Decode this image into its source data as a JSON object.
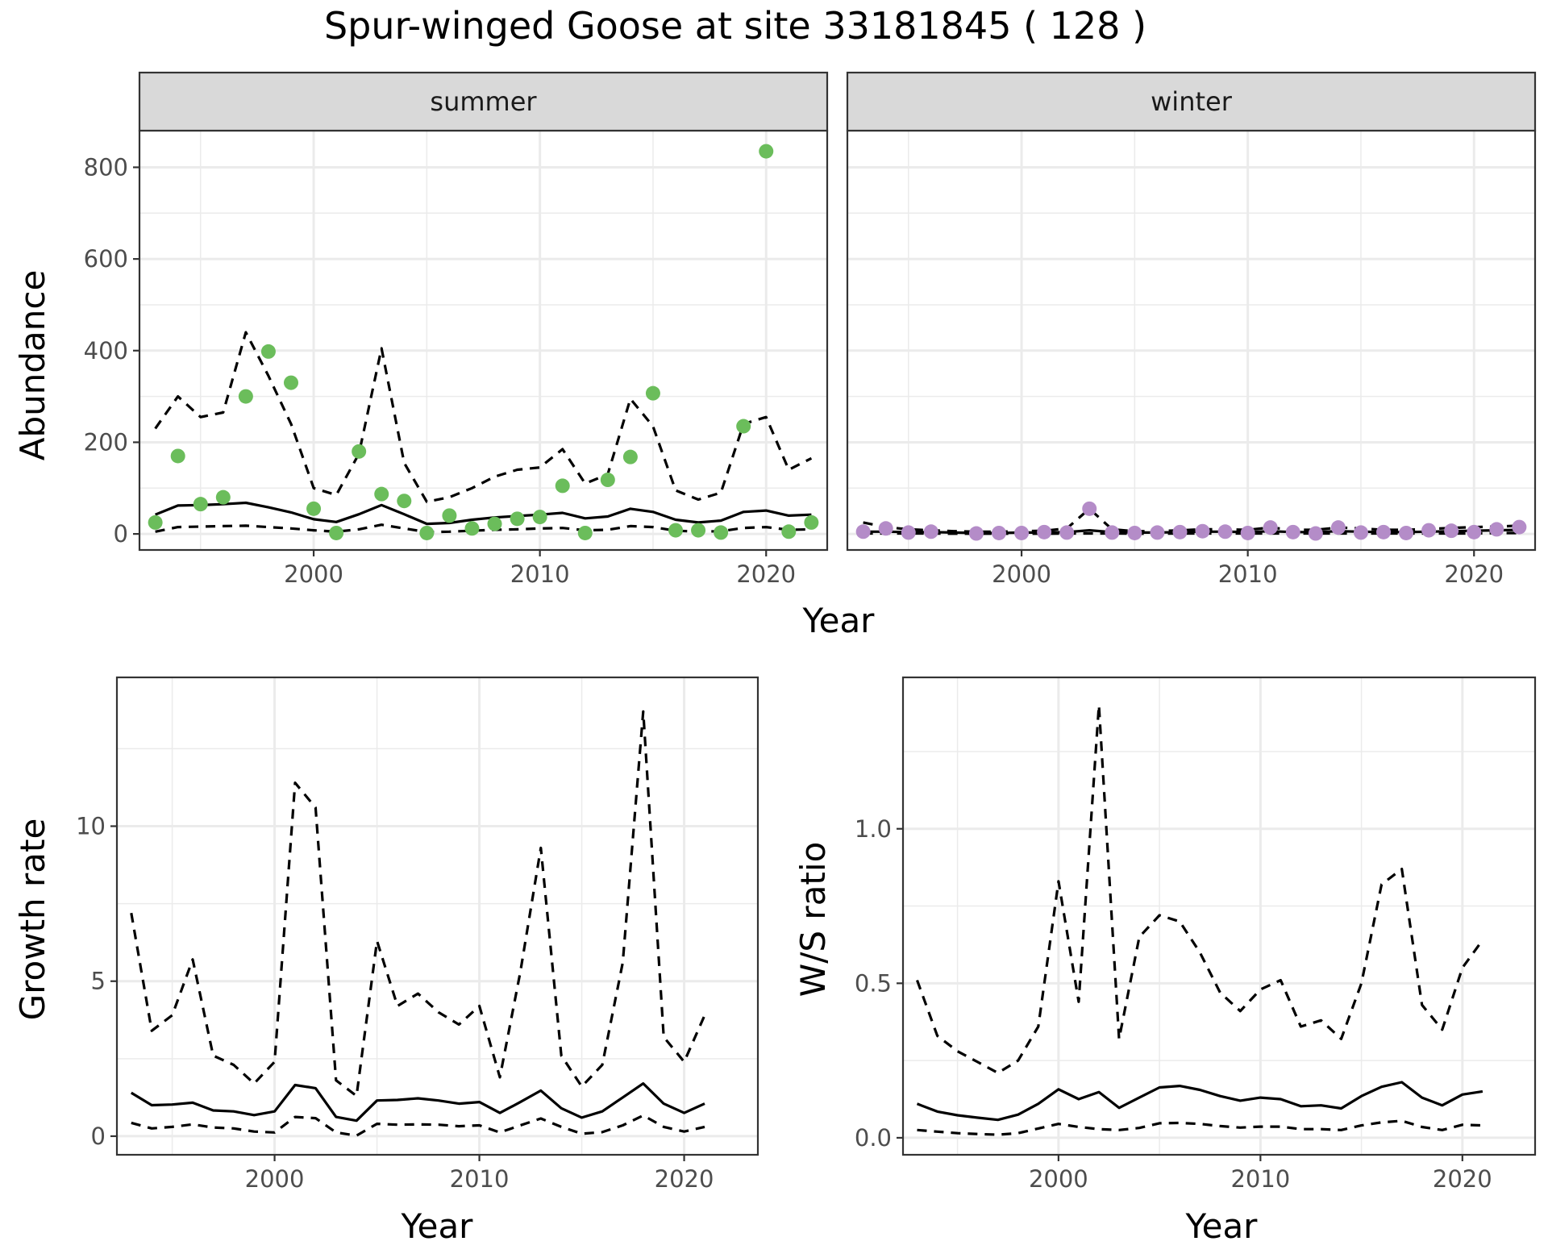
{
  "title": "Spur-winged Goose at site 33181845 ( 128 )",
  "colors": {
    "summer_points": "#6bbd5b",
    "winter_points": "#b48cc8",
    "lines": "#000000",
    "strip_bg": "#d9d9d9",
    "grid": "#ebebeb"
  },
  "chart_data": [
    {
      "type": "line",
      "panel": "summer",
      "strip_label": "summer",
      "xlabel": "Year",
      "ylabel": "Abundance",
      "xlim": [
        1992.3,
        2022.7
      ],
      "ylim": [
        -35,
        880
      ],
      "xticks": [
        2000,
        2010,
        2020
      ],
      "yticks": [
        0,
        200,
        400,
        600,
        800
      ],
      "grid": true,
      "observed_color": "#6bbd5b",
      "observed": {
        "x": [
          1993,
          1994,
          1995,
          1996,
          1997,
          1998,
          1999,
          2000,
          2001,
          2002,
          2003,
          2004,
          2005,
          2006,
          2007,
          2008,
          2009,
          2010,
          2011,
          2012,
          2013,
          2014,
          2015,
          2016,
          2017,
          2018,
          2019,
          2020,
          2021,
          2022
        ],
        "y": [
          25,
          170,
          65,
          80,
          300,
          398,
          330,
          55,
          2,
          180,
          87,
          72,
          2,
          40,
          12,
          22,
          33,
          37,
          105,
          2,
          118,
          168,
          307,
          8,
          8,
          3,
          235,
          835,
          5,
          25
        ]
      },
      "series": [
        {
          "linestyle": "solid",
          "x": [
            1993,
            1994,
            1995,
            1996,
            1997,
            1998,
            1999,
            2000,
            2001,
            2002,
            2003,
            2004,
            2005,
            2006,
            2007,
            2008,
            2009,
            2010,
            2011,
            2012,
            2013,
            2014,
            2015,
            2016,
            2017,
            2018,
            2019,
            2020,
            2021,
            2022
          ],
          "y": [
            42,
            62,
            63,
            65,
            68,
            58,
            47,
            32,
            26,
            43,
            63,
            43,
            22,
            24,
            31,
            36,
            39,
            42,
            46,
            34,
            38,
            55,
            48,
            31,
            25,
            29,
            48,
            51,
            40,
            42
          ]
        },
        {
          "linestyle": "dashed",
          "x": [
            1993,
            1994,
            1995,
            1996,
            1997,
            1998,
            1999,
            2000,
            2001,
            2002,
            2003,
            2004,
            2005,
            2006,
            2007,
            2008,
            2009,
            2010,
            2011,
            2012,
            2013,
            2014,
            2015,
            2016,
            2017,
            2018,
            2019,
            2020,
            2021,
            2022
          ],
          "y": [
            230,
            300,
            255,
            265,
            440,
            345,
            240,
            100,
            85,
            175,
            405,
            155,
            70,
            80,
            100,
            125,
            140,
            145,
            185,
            110,
            130,
            295,
            235,
            95,
            75,
            90,
            240,
            255,
            140,
            165
          ]
        },
        {
          "linestyle": "dashed",
          "x": [
            1993,
            1994,
            1995,
            1996,
            1997,
            1998,
            1999,
            2000,
            2001,
            2002,
            2003,
            2004,
            2005,
            2006,
            2007,
            2008,
            2009,
            2010,
            2011,
            2012,
            2013,
            2014,
            2015,
            2016,
            2017,
            2018,
            2019,
            2020,
            2021,
            2022
          ],
          "y": [
            5,
            15,
            16,
            17,
            18,
            15,
            12,
            8,
            5,
            10,
            20,
            12,
            4,
            5,
            7,
            9,
            10,
            12,
            13,
            8,
            9,
            17,
            15,
            7,
            5,
            6,
            13,
            15,
            9,
            10
          ]
        }
      ]
    },
    {
      "type": "line",
      "panel": "winter",
      "strip_label": "winter",
      "xlabel": "Year",
      "ylabel": "Abundance",
      "xlim": [
        1992.3,
        2022.7
      ],
      "ylim": [
        -35,
        880
      ],
      "xticks": [
        2000,
        2010,
        2020
      ],
      "yticks": [
        0,
        200,
        400,
        600,
        800
      ],
      "grid": true,
      "observed_color": "#b48cc8",
      "observed": {
        "x": [
          1993,
          1994,
          1995,
          1996,
          1998,
          1999,
          2000,
          2001,
          2002,
          2003,
          2004,
          2005,
          2006,
          2007,
          2008,
          2009,
          2010,
          2011,
          2012,
          2013,
          2014,
          2015,
          2016,
          2017,
          2018,
          2019,
          2020,
          2021,
          2022
        ],
        "y": [
          5,
          12,
          3,
          5,
          1,
          2,
          2,
          4,
          3,
          55,
          3,
          2,
          3,
          4,
          6,
          5,
          2,
          14,
          4,
          1,
          14,
          3,
          4,
          2,
          8,
          7,
          4,
          10,
          15
        ]
      },
      "series": [
        {
          "linestyle": "solid",
          "x": [
            1993,
            1994,
            1995,
            1996,
            1997,
            1998,
            1999,
            2000,
            2001,
            2002,
            2003,
            2004,
            2005,
            2006,
            2007,
            2008,
            2009,
            2010,
            2011,
            2012,
            2013,
            2014,
            2015,
            2016,
            2017,
            2018,
            2019,
            2020,
            2021,
            2022
          ],
          "y": [
            5,
            5,
            4,
            4,
            3,
            2,
            2,
            3,
            3,
            4,
            8,
            4,
            3,
            3,
            4,
            5,
            5,
            4,
            6,
            4,
            4,
            6,
            5,
            4,
            4,
            5,
            6,
            7,
            8,
            9
          ]
        },
        {
          "linestyle": "dashed",
          "x": [
            1993,
            1994,
            1995,
            1996,
            1997,
            1998,
            1999,
            2000,
            2001,
            2002,
            2003,
            2004,
            2005,
            2006,
            2007,
            2008,
            2009,
            2010,
            2011,
            2012,
            2013,
            2014,
            2015,
            2016,
            2017,
            2018,
            2019,
            2020,
            2021,
            2022
          ],
          "y": [
            25,
            15,
            10,
            8,
            6,
            5,
            5,
            6,
            7,
            12,
            55,
            10,
            6,
            6,
            8,
            10,
            10,
            9,
            14,
            9,
            9,
            14,
            12,
            9,
            9,
            11,
            13,
            15,
            16,
            18
          ]
        },
        {
          "linestyle": "dashed",
          "x": [
            1993,
            1994,
            1995,
            1996,
            1997,
            1998,
            1999,
            2000,
            2001,
            2002,
            2003,
            2004,
            2005,
            2006,
            2007,
            2008,
            2009,
            2010,
            2011,
            2012,
            2013,
            2014,
            2015,
            2016,
            2017,
            2018,
            2019,
            2020,
            2021,
            2022
          ],
          "y": [
            1,
            1,
            1,
            1,
            0.5,
            0.5,
            0.5,
            0.5,
            0.5,
            1,
            1,
            1,
            0.5,
            0.5,
            1,
            1,
            1,
            1,
            1,
            1,
            1,
            1,
            1,
            1,
            1,
            1,
            1,
            1,
            2,
            2
          ]
        }
      ]
    },
    {
      "type": "line",
      "panel": "growth",
      "xlabel": "Year",
      "ylabel": "Growth rate",
      "xlim": [
        1992.3,
        2023.6
      ],
      "ylim": [
        -0.6,
        14.8
      ],
      "xticks": [
        2000,
        2010,
        2020
      ],
      "yticks": [
        0,
        5,
        10
      ],
      "grid": true,
      "series": [
        {
          "linestyle": "solid",
          "x": [
            1993,
            1994,
            1995,
            1996,
            1997,
            1998,
            1999,
            2000,
            2001,
            2002,
            2003,
            2004,
            2005,
            2006,
            2007,
            2008,
            2009,
            2010,
            2011,
            2012,
            2013,
            2014,
            2015,
            2016,
            2017,
            2018,
            2019,
            2020,
            2021
          ],
          "y": [
            1.4,
            1.0,
            1.02,
            1.08,
            0.83,
            0.8,
            0.68,
            0.8,
            1.65,
            1.55,
            0.62,
            0.5,
            1.15,
            1.17,
            1.22,
            1.15,
            1.05,
            1.1,
            0.75,
            1.1,
            1.47,
            0.9,
            0.6,
            0.8,
            1.25,
            1.7,
            1.05,
            0.75,
            1.05
          ]
        },
        {
          "linestyle": "dashed",
          "x": [
            1993,
            1994,
            1995,
            1996,
            1997,
            1998,
            1999,
            2000,
            2001,
            2002,
            2003,
            2004,
            2005,
            2006,
            2007,
            2008,
            2009,
            2010,
            2011,
            2012,
            2013,
            2014,
            2015,
            2016,
            2017,
            2018,
            2019,
            2020,
            2021
          ],
          "y": [
            7.2,
            3.4,
            3.9,
            5.7,
            2.6,
            2.3,
            1.7,
            2.4,
            11.4,
            10.6,
            1.8,
            1.3,
            6.3,
            4.2,
            4.6,
            4.0,
            3.6,
            4.2,
            1.9,
            5.3,
            9.3,
            2.6,
            1.6,
            2.3,
            5.6,
            13.7,
            3.2,
            2.4,
            3.9
          ]
        },
        {
          "linestyle": "dashed",
          "x": [
            1993,
            1994,
            1995,
            1996,
            1997,
            1998,
            1999,
            2000,
            2001,
            2002,
            2003,
            2004,
            2005,
            2006,
            2007,
            2008,
            2009,
            2010,
            2011,
            2012,
            2013,
            2014,
            2015,
            2016,
            2017,
            2018,
            2019,
            2020,
            2021
          ],
          "y": [
            0.43,
            0.25,
            0.3,
            0.38,
            0.28,
            0.25,
            0.15,
            0.12,
            0.62,
            0.58,
            0.12,
            0.02,
            0.4,
            0.37,
            0.38,
            0.37,
            0.32,
            0.35,
            0.12,
            0.35,
            0.57,
            0.3,
            0.08,
            0.13,
            0.35,
            0.67,
            0.3,
            0.15,
            0.3
          ]
        }
      ]
    },
    {
      "type": "line",
      "panel": "ratio",
      "xlabel": "Year",
      "ylabel": "W/S ratio",
      "xlim": [
        1992.3,
        2023.6
      ],
      "ylim": [
        -0.055,
        1.49
      ],
      "xticks": [
        2000,
        2010,
        2020
      ],
      "yticks": [
        0.0,
        0.5,
        1.0
      ],
      "ytick_labels": [
        "0.0",
        "0.5",
        "1.0"
      ],
      "grid": true,
      "series": [
        {
          "linestyle": "solid",
          "x": [
            1993,
            1994,
            1995,
            1996,
            1997,
            1998,
            1999,
            2000,
            2001,
            2002,
            2003,
            2004,
            2005,
            2006,
            2007,
            2008,
            2009,
            2010,
            2011,
            2012,
            2013,
            2014,
            2015,
            2016,
            2017,
            2018,
            2019,
            2020,
            2021
          ],
          "y": [
            0.11,
            0.085,
            0.073,
            0.065,
            0.058,
            0.075,
            0.11,
            0.157,
            0.125,
            0.148,
            0.097,
            0.13,
            0.163,
            0.168,
            0.155,
            0.135,
            0.12,
            0.13,
            0.125,
            0.102,
            0.105,
            0.095,
            0.135,
            0.165,
            0.18,
            0.13,
            0.105,
            0.14,
            0.15
          ]
        },
        {
          "linestyle": "dashed",
          "x": [
            1993,
            1994,
            1995,
            1996,
            1997,
            1998,
            1999,
            2000,
            2001,
            2002,
            2003,
            2004,
            2005,
            2006,
            2007,
            2008,
            2009,
            2010,
            2011,
            2012,
            2013,
            2014,
            2015,
            2016,
            2017,
            2018,
            2019,
            2020,
            2021
          ],
          "y": [
            0.51,
            0.33,
            0.28,
            0.245,
            0.21,
            0.25,
            0.36,
            0.83,
            0.44,
            1.4,
            0.32,
            0.65,
            0.72,
            0.7,
            0.6,
            0.47,
            0.41,
            0.48,
            0.51,
            0.36,
            0.38,
            0.32,
            0.5,
            0.82,
            0.87,
            0.43,
            0.35,
            0.55,
            0.64
          ]
        },
        {
          "linestyle": "dashed",
          "x": [
            1993,
            1994,
            1995,
            1996,
            1997,
            1998,
            1999,
            2000,
            2001,
            2002,
            2003,
            2004,
            2005,
            2006,
            2007,
            2008,
            2009,
            2010,
            2011,
            2012,
            2013,
            2014,
            2015,
            2016,
            2017,
            2018,
            2019,
            2020,
            2021
          ],
          "y": [
            0.025,
            0.02,
            0.015,
            0.012,
            0.01,
            0.015,
            0.03,
            0.045,
            0.035,
            0.028,
            0.025,
            0.032,
            0.047,
            0.048,
            0.045,
            0.038,
            0.033,
            0.036,
            0.036,
            0.028,
            0.028,
            0.025,
            0.04,
            0.05,
            0.055,
            0.035,
            0.025,
            0.042,
            0.04
          ]
        }
      ]
    }
  ]
}
